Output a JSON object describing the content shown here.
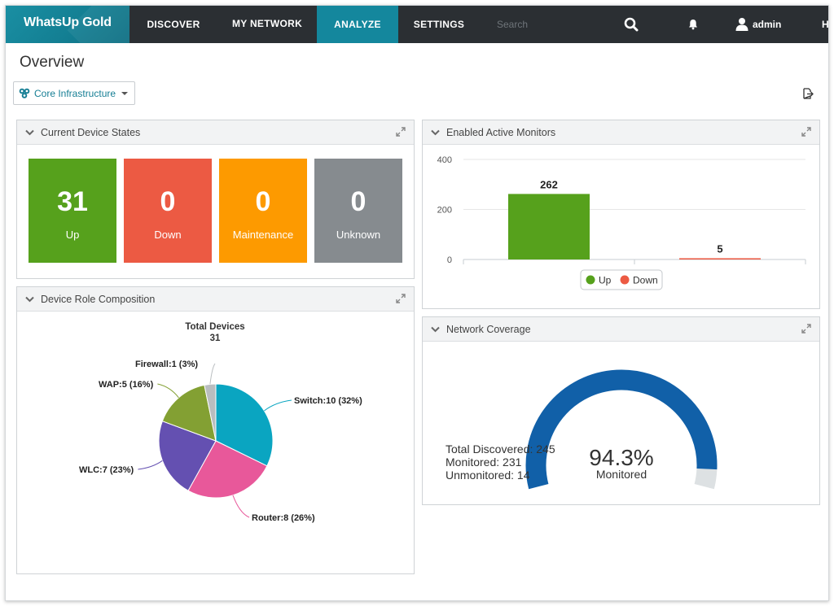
{
  "brand": "WhatsUp Gold",
  "nav": {
    "items": [
      {
        "label": "DISCOVER",
        "active": false
      },
      {
        "label": "MY NETWORK",
        "active": false
      },
      {
        "label": "ANALYZE",
        "active": true
      },
      {
        "label": "SETTINGS",
        "active": false
      }
    ],
    "search_placeholder": "Search",
    "user": "admin",
    "help_label": "H"
  },
  "page": {
    "title": "Overview",
    "group": "Core Infrastructure"
  },
  "device_states": {
    "title": "Current Device States",
    "tiles": [
      {
        "value": "31",
        "label": "Up",
        "color": "#56a11c"
      },
      {
        "value": "0",
        "label": "Down",
        "color": "#ec5a43"
      },
      {
        "value": "0",
        "label": "Maintenance",
        "color": "#fd9a00"
      },
      {
        "value": "0",
        "label": "Unknown",
        "color": "#868b8f"
      }
    ]
  },
  "active_monitors": {
    "title": "Enabled Active Monitors",
    "chart_data": {
      "type": "bar",
      "categories": [
        "Up",
        "Down"
      ],
      "values": [
        262,
        5
      ],
      "value_labels": [
        "262",
        "5"
      ],
      "colors": [
        "#56a11c",
        "#ec5a43"
      ],
      "ylim": [
        0,
        400
      ],
      "yticks": [
        "0",
        "200",
        "400"
      ],
      "legend": [
        "Up",
        "Down"
      ],
      "legend_position": "bottom-center"
    }
  },
  "role_composition": {
    "title": "Device Role Composition",
    "total_label": "Total Devices",
    "total_value": "31",
    "chart_data": {
      "type": "pie",
      "slices": [
        {
          "label": "Switch:10 (32%)",
          "value": 10,
          "color": "#0aa5c1"
        },
        {
          "label": "Router:8 (26%)",
          "value": 8,
          "color": "#e8589a"
        },
        {
          "label": "WLC:7 (23%)",
          "value": 7,
          "color": "#6450b1"
        },
        {
          "label": "WAP:5 (16%)",
          "value": 5,
          "color": "#83a033"
        },
        {
          "label": "Firewall:1 (3%)",
          "value": 1,
          "color": "#b9bdbf"
        }
      ]
    }
  },
  "coverage": {
    "title": "Network Coverage",
    "total_discovered": "Total Discovered: 245",
    "monitored": "Monitored: 231",
    "unmonitored": "Unmonitored: 14",
    "percent": "94.3%",
    "percent_label": "Monitored",
    "fraction": 0.943,
    "gauge_color": "#1160a8",
    "rest_color": "#dde1e3"
  }
}
